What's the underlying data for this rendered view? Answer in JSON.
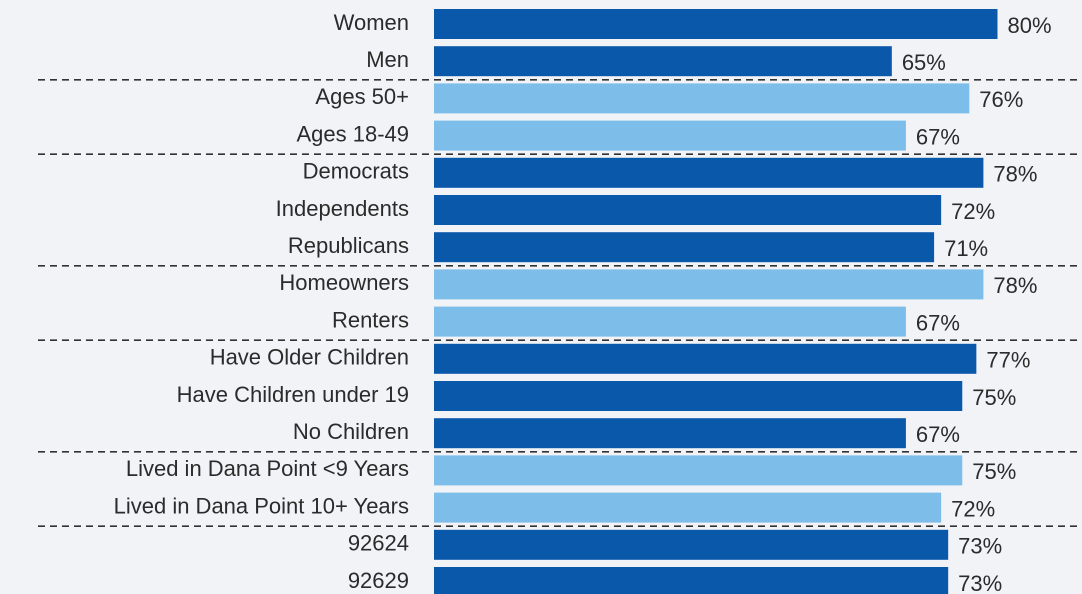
{
  "chart_data": {
    "type": "hbar",
    "categories": [
      "Women",
      "Men",
      "Ages 50+",
      "Ages 18-49",
      "Democrats",
      "Independents",
      "Republicans",
      "Homeowners",
      "Renters",
      "Have Older Children",
      "Have Children under 19",
      "No Children",
      "Lived in Dana Point <9 Years",
      "Lived in Dana Point 10+ Years",
      "92624",
      "92629"
    ],
    "values": [
      80,
      65,
      76,
      67,
      78,
      72,
      71,
      78,
      67,
      77,
      75,
      67,
      75,
      72,
      73,
      73
    ],
    "value_labels": [
      "80%",
      "65%",
      "76%",
      "67%",
      "78%",
      "72%",
      "71%",
      "78%",
      "67%",
      "77%",
      "75%",
      "67%",
      "75%",
      "72%",
      "73%",
      "73%"
    ],
    "colors": [
      "#0a58aa",
      "#0a58aa",
      "#7dbde9",
      "#7dbde9",
      "#0a58aa",
      "#0a58aa",
      "#0a58aa",
      "#7dbde9",
      "#7dbde9",
      "#0a58aa",
      "#0a58aa",
      "#0a58aa",
      "#7dbde9",
      "#7dbde9",
      "#0a58aa",
      "#0a58aa"
    ],
    "xlim": [
      0,
      92
    ]
  }
}
